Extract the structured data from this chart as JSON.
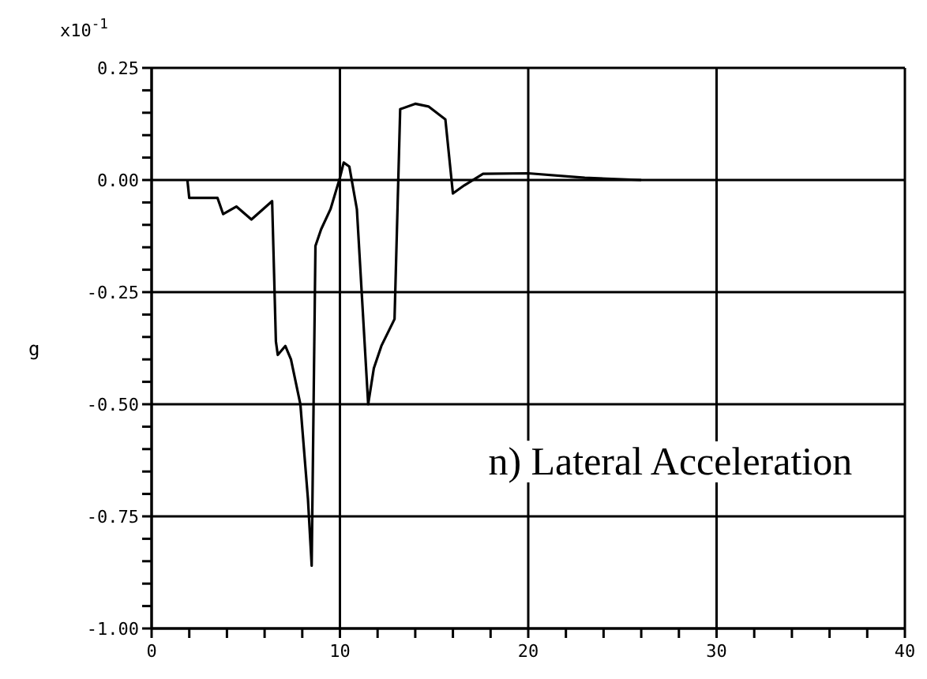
{
  "chart_data": {
    "type": "line",
    "title": "n) Lateral Acceleration",
    "ylabel": "g",
    "annotations": [
      "x10$^{-1}$"
    ],
    "x": [
      1.9,
      2.0,
      3.5,
      3.8,
      4.5,
      5.3,
      6.4,
      6.6,
      6.7,
      7.1,
      7.4,
      7.9,
      8.3,
      8.5,
      8.7,
      9.0,
      9.5,
      10.0,
      10.2,
      10.5,
      10.9,
      11.5,
      11.8,
      12.2,
      12.9,
      13.2,
      14.0,
      14.7,
      15.6,
      16.0,
      16.6,
      17.6,
      20.0,
      23.0,
      26.0
    ],
    "series": [
      {
        "color": "#000000",
        "values": [
          0,
          -0.04,
          -0.04,
          -0.076,
          -0.059,
          -0.088,
          -0.047,
          -0.36,
          -0.39,
          -0.37,
          -0.4,
          -0.5,
          -0.71,
          -0.86,
          -0.147,
          -0.11,
          -0.065,
          0.005,
          0.039,
          0.03,
          -0.065,
          -0.5,
          -0.42,
          -0.37,
          -0.31,
          0.158,
          0.17,
          0.164,
          0.135,
          -0.03,
          -0.012,
          0.014,
          0.015,
          0.005,
          0
        ]
      }
    ],
    "xlim": [
      0,
      40
    ],
    "xticks": [
      0,
      {
        "value": 2,
        "label": null
      },
      {
        "value": 4,
        "label": null
      },
      {
        "value": 6,
        "label": null
      },
      {
        "value": 8,
        "label": null
      },
      10,
      {
        "value": 12,
        "label": null
      },
      {
        "value": 14,
        "label": null
      },
      {
        "value": 16,
        "label": null
      },
      {
        "value": 18,
        "label": null
      },
      20,
      {
        "value": 22,
        "label": null
      },
      {
        "value": 24,
        "label": null
      },
      {
        "value": 26,
        "label": null
      },
      {
        "value": 28,
        "label": null
      },
      30,
      {
        "value": 32,
        "label": null
      },
      {
        "value": 34,
        "label": null
      },
      {
        "value": 36,
        "label": null
      },
      {
        "value": 38,
        "label": null
      },
      40
    ],
    "ylim": [
      -1.0,
      0.25
    ],
    "yticks": [
      {
        "value": -1.0,
        "label": "-1.00"
      },
      {
        "value": -0.95,
        "label": null
      },
      {
        "value": -0.9,
        "label": null
      },
      {
        "value": -0.85,
        "label": null
      },
      {
        "value": -0.8,
        "label": null
      },
      {
        "value": -0.75,
        "label": "-0.75"
      },
      {
        "value": -0.7,
        "label": null
      },
      {
        "value": -0.65,
        "label": null
      },
      {
        "value": -0.6,
        "label": null
      },
      {
        "value": -0.55,
        "label": null
      },
      {
        "value": -0.5,
        "label": "-0.50"
      },
      {
        "value": -0.45,
        "label": null
      },
      {
        "value": -0.4,
        "label": null
      },
      {
        "value": -0.35,
        "label": null
      },
      {
        "value": -0.3,
        "label": null
      },
      {
        "value": -0.25,
        "label": "-0.25"
      },
      {
        "value": -0.2,
        "label": null
      },
      {
        "value": -0.15,
        "label": null
      },
      {
        "value": -0.1,
        "label": null
      },
      {
        "value": -0.05,
        "label": null
      },
      {
        "value": 0,
        "label": "0.00"
      },
      {
        "value": 0.05,
        "label": null
      },
      {
        "value": 0.1,
        "label": null
      },
      {
        "value": 0.15,
        "label": null
      },
      {
        "value": 0.2,
        "label": null
      },
      {
        "value": 0.25,
        "label": "0.25"
      }
    ],
    "grid": true,
    "legend": false,
    "marker": "none",
    "line_style": "solid"
  }
}
